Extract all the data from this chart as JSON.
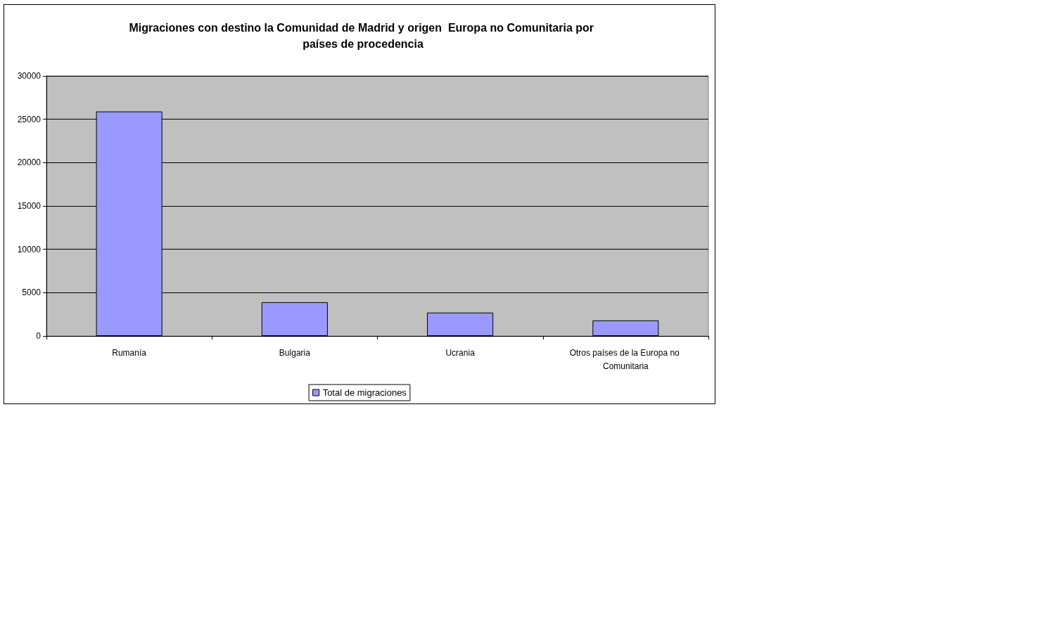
{
  "chart_data": {
    "type": "bar",
    "title": "Migraciones con destino la Comunidad de Madrid y origen  Europa no Comunitaria por países de procedencia",
    "categories": [
      "Rumanía",
      "Bulgaria",
      "Ucrania",
      "Otros países de la Europa no Comunitaria"
    ],
    "series": [
      {
        "name": "Total de migraciones",
        "color": "#9999ff",
        "values": [
          25900,
          3900,
          2700,
          1800
        ]
      }
    ],
    "ylim": [
      0,
      30000
    ],
    "yticks": [
      0,
      5000,
      10000,
      15000,
      20000,
      25000,
      30000
    ],
    "grid": "y",
    "legend": "bottom"
  }
}
